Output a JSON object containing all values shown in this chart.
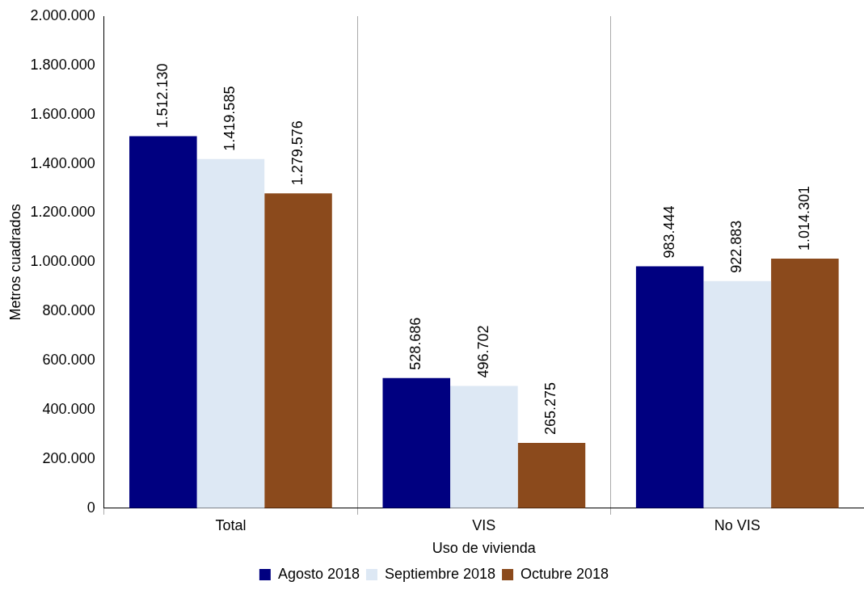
{
  "chart_data": {
    "type": "bar",
    "xlabel": "Uso de vivienda",
    "ylabel": "Metros cuadrados",
    "categories": [
      "Total",
      "VIS",
      "No VIS"
    ],
    "series": [
      {
        "name": "Agosto 2018",
        "color": "#000080",
        "values": [
          1512130,
          528686,
          983444
        ],
        "value_labels": [
          "1.512.130",
          "528.686",
          "983.444"
        ]
      },
      {
        "name": "Septiembre 2018",
        "color": "#dde8f4",
        "values": [
          1419585,
          496702,
          922883
        ],
        "value_labels": [
          "1.419.585",
          "496.702",
          "922.883"
        ]
      },
      {
        "name": "Octubre 2018",
        "color": "#8b4a1c",
        "values": [
          1279576,
          265275,
          1014301
        ],
        "value_labels": [
          "1.279.576",
          "265.275",
          "1.014.301"
        ]
      }
    ],
    "ylim": [
      0,
      2000000
    ],
    "yticks": [
      {
        "value": 0,
        "label": "0"
      },
      {
        "value": 200000,
        "label": "200.000"
      },
      {
        "value": 400000,
        "label": "400.000"
      },
      {
        "value": 600000,
        "label": "600.000"
      },
      {
        "value": 800000,
        "label": "800.000"
      },
      {
        "value": 1000000,
        "label": "1.000.000"
      },
      {
        "value": 1200000,
        "label": "1.200.000"
      },
      {
        "value": 1400000,
        "label": "1.400.000"
      },
      {
        "value": 1600000,
        "label": "1.600.000"
      },
      {
        "value": 1800000,
        "label": "1.800.000"
      },
      {
        "value": 2000000,
        "label": "2.000.000"
      }
    ],
    "grid": "x",
    "legend": "bottom"
  }
}
